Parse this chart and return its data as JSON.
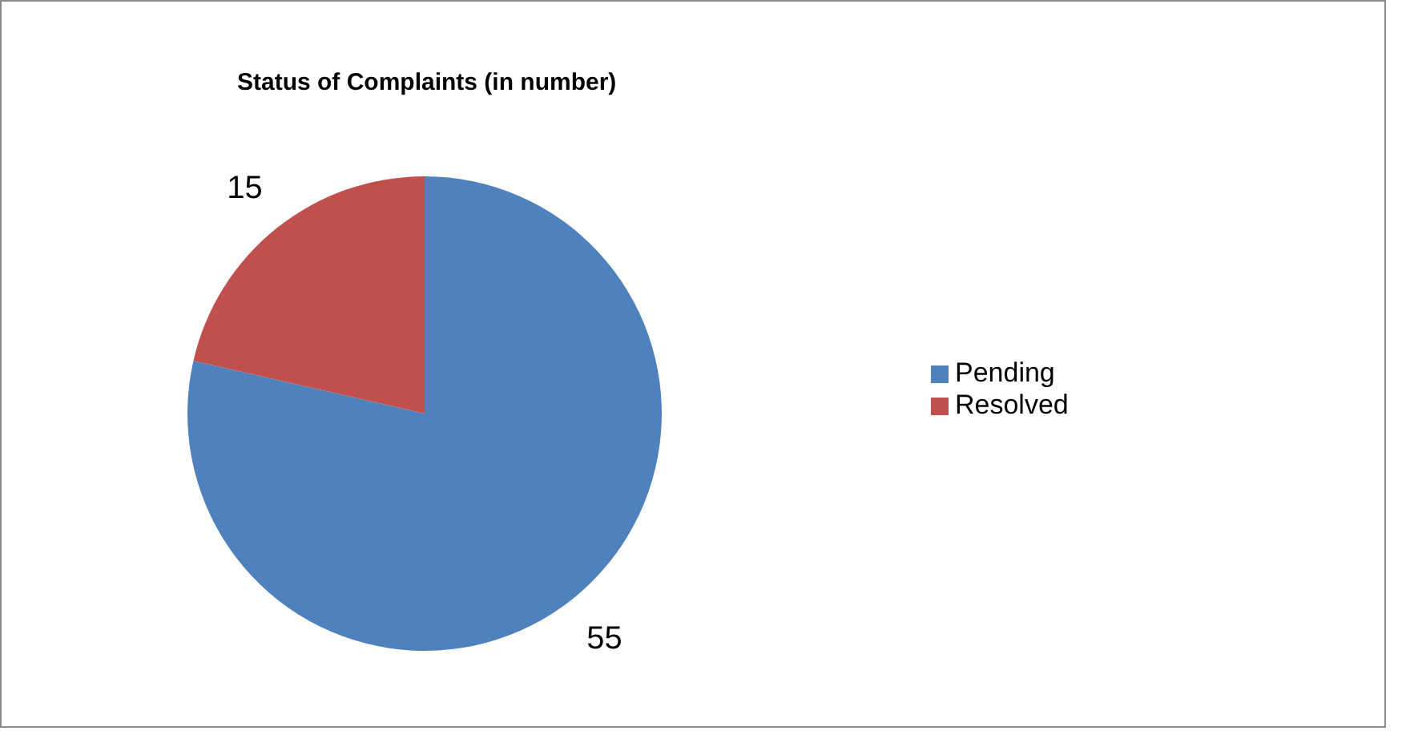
{
  "chart_data": {
    "type": "pie",
    "title": "Status of Complaints (in number)",
    "categories": [
      "Pending",
      "Resolved"
    ],
    "values": [
      55,
      15
    ],
    "colors": [
      "#4f81bd",
      "#c0504d"
    ],
    "data_labels": true,
    "legend": "right"
  }
}
